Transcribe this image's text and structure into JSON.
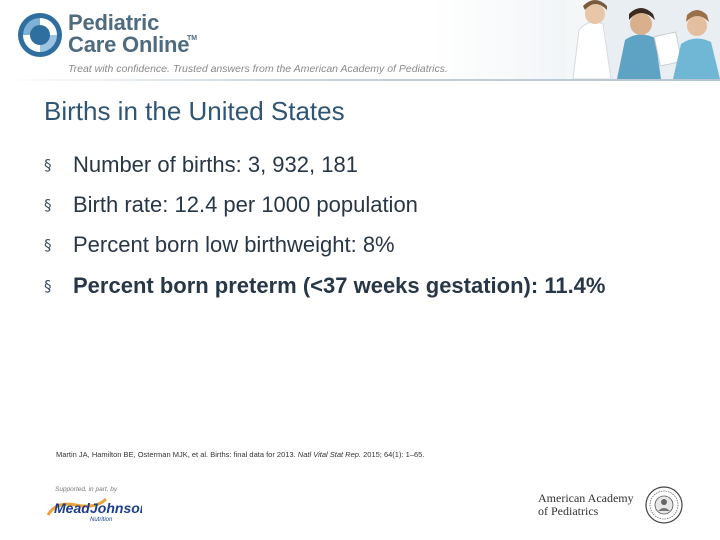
{
  "header": {
    "brand_line1": "Pediatric",
    "brand_line2": "Care Online",
    "trademark": "TM",
    "tagline": "Treat with confidence. Trusted answers from the American Academy of Pediatrics."
  },
  "slide": {
    "title": "Births in the United States",
    "bullets": [
      {
        "text": "Number of births: 3, 932, 181"
      },
      {
        "text": "Birth rate: 12.4 per 1000 population"
      },
      {
        "text": "Percent born low birthweight: 8%"
      },
      {
        "text": "Percent born preterm (<37 weeks gestation): 11.4%"
      }
    ],
    "bullet_symbol": "§"
  },
  "reference": {
    "authors_title": "Martin JA, Hamilton BE, Osterman MJK, et al. Births: final data for 2013.",
    "journal": "Natl Vital Stat Rep.",
    "citation": "2015; 64(1): 1–65."
  },
  "footer": {
    "support_label": "Supported, in part, by",
    "sponsor_logo": "MeadJohnson Nutrition",
    "aap_line1": "American Academy",
    "aap_line2": "of Pediatrics"
  },
  "colors": {
    "title": "#2f5575",
    "brand": "#4f6b80",
    "body_text": "#283747",
    "sponsor_blue": "#1c3f8c"
  }
}
